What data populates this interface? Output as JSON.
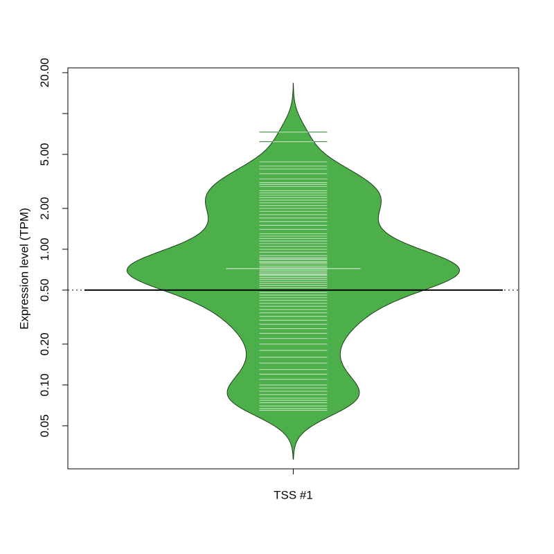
{
  "chart_data": {
    "type": "beanplot",
    "y_label": "Expression level (TPM)",
    "categories": [
      "TSS #1"
    ],
    "values": [
      [
        7.3,
        6.2,
        4.4,
        4.1,
        3.9,
        3.6,
        3.3,
        3.1,
        3.0,
        2.9,
        2.7,
        2.6,
        2.5,
        2.4,
        2.3,
        2.2,
        2.1,
        2.0,
        1.9,
        1.8,
        1.7,
        1.6,
        1.5,
        1.4,
        1.3,
        1.25,
        1.2,
        1.15,
        1.1,
        1.05,
        1.0,
        0.95,
        0.9,
        0.87,
        0.85,
        0.84,
        0.81,
        0.8,
        0.78,
        0.75,
        0.75,
        0.73,
        0.72,
        0.7,
        0.7,
        0.68,
        0.68,
        0.66,
        0.65,
        0.64,
        0.62,
        0.62,
        0.6,
        0.58,
        0.56,
        0.54,
        0.52,
        0.5,
        0.48,
        0.46,
        0.44,
        0.42,
        0.4,
        0.38,
        0.36,
        0.34,
        0.32,
        0.3,
        0.28,
        0.26,
        0.24,
        0.22,
        0.2,
        0.18,
        0.16,
        0.145,
        0.13,
        0.12,
        0.11,
        0.1,
        0.095,
        0.09,
        0.085,
        0.08,
        0.077,
        0.074,
        0.07,
        0.067,
        0.065
      ]
    ],
    "means": [
      0.72
    ],
    "overall_mean": 0.5,
    "color": "#4daf4a",
    "line_color": "#b6deb3",
    "log_scale": true,
    "ylim": [
      0.0241,
      21.7
    ],
    "yticks": [
      {
        "value": 0.05,
        "label": "0.05"
      },
      {
        "value": 0.1,
        "label": "0.10"
      },
      {
        "value": 0.2,
        "label": "0.20"
      },
      {
        "value": 0.5,
        "label": "0.50"
      },
      {
        "value": 1,
        "label": "1.00"
      },
      {
        "value": 2,
        "label": "2.00"
      },
      {
        "value": 5,
        "label": "5.00"
      },
      {
        "value": 10,
        "label": null
      },
      {
        "value": 20,
        "label": "20.00"
      }
    ]
  }
}
